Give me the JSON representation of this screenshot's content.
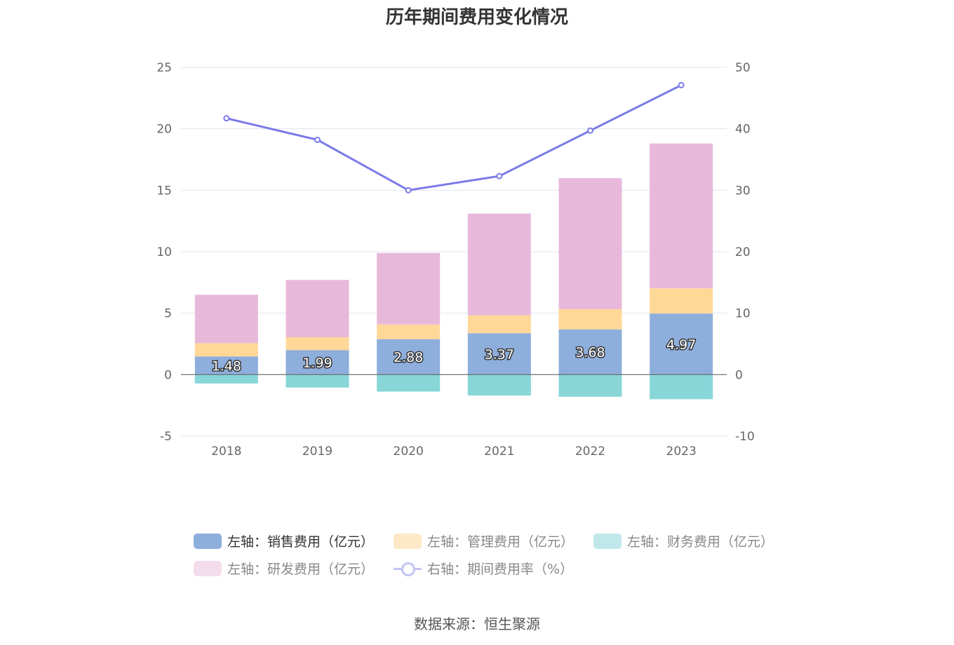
{
  "chart_data": {
    "type": "bar",
    "title": "历年期间费用变化情况",
    "categories": [
      "2018",
      "2019",
      "2020",
      "2021",
      "2022",
      "2023"
    ],
    "left_axis": {
      "ylim": [
        -5,
        25
      ],
      "ticks": [
        "25",
        "20",
        "15",
        "10",
        "5",
        "0",
        "-5"
      ]
    },
    "right_axis": {
      "ylim": [
        -10,
        50
      ],
      "ticks": [
        "50",
        "40",
        "30",
        "20",
        "10",
        "0",
        "-10"
      ]
    },
    "series": [
      {
        "name": "左轴：销售费用（亿元）",
        "type": "bar",
        "axis": "left",
        "color": "#8eaedc",
        "values": [
          1.48,
          1.99,
          2.88,
          3.37,
          3.68,
          4.97
        ],
        "labels": [
          "1.48",
          "1.99",
          "2.88",
          "3.37",
          "3.68",
          "4.97"
        ]
      },
      {
        "name": "左轴：管理费用（亿元）",
        "type": "bar",
        "axis": "left",
        "color": "#ffd898",
        "values": [
          1.08,
          1.05,
          1.2,
          1.45,
          1.65,
          2.05
        ]
      },
      {
        "name": "左轴：财务费用（亿元）",
        "type": "bar",
        "axis": "left",
        "color": "#88d6d8",
        "values": [
          -0.72,
          -1.05,
          -1.38,
          -1.7,
          -1.8,
          -2.0
        ]
      },
      {
        "name": "左轴：研发费用（亿元）",
        "type": "bar",
        "axis": "left",
        "color": "#e8b8da",
        "values": [
          3.94,
          4.66,
          5.82,
          8.28,
          10.65,
          11.78
        ]
      },
      {
        "name": "右轴：期间费用率（%）",
        "type": "line",
        "axis": "right",
        "color": "#7b7be8",
        "values": [
          41.7,
          38.2,
          30.0,
          32.3,
          39.7,
          47.1
        ]
      }
    ],
    "grid": true,
    "legend_position": "bottom"
  },
  "legend": [
    {
      "label": "左轴：销售费用（亿元）",
      "color": "#8eaedc",
      "kind": "bar",
      "active": true
    },
    {
      "label": "左轴：管理费用（亿元）",
      "color": "#fde8c8",
      "kind": "bar",
      "active": false
    },
    {
      "label": "左轴：财务费用（亿元）",
      "color": "#c0e8ea",
      "kind": "bar",
      "active": false
    },
    {
      "label": "左轴：研发费用（亿元）",
      "color": "#f3dcec",
      "kind": "bar",
      "active": false
    },
    {
      "label": "右轴：期间费用率（%）",
      "color": "#c3c3f3",
      "kind": "line",
      "active": false
    }
  ],
  "source": "数据来源：恒生聚源"
}
